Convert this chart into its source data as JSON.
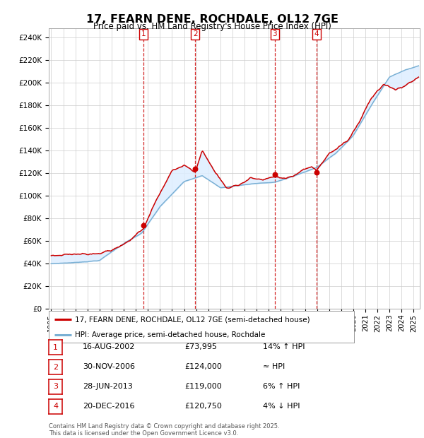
{
  "title": "17, FEARN DENE, ROCHDALE, OL12 7GE",
  "subtitle": "Price paid vs. HM Land Registry's House Price Index (HPI)",
  "ylabel_ticks": [
    0,
    20000,
    40000,
    60000,
    80000,
    100000,
    120000,
    140000,
    160000,
    180000,
    200000,
    220000,
    240000
  ],
  "ylabel_labels": [
    "£0",
    "£20K",
    "£40K",
    "£60K",
    "£80K",
    "£100K",
    "£120K",
    "£140K",
    "£160K",
    "£180K",
    "£200K",
    "£220K",
    "£240K"
  ],
  "xmin": 1994.8,
  "xmax": 2025.5,
  "ymin": 0,
  "ymax": 248000,
  "vlines": [
    2002.625,
    2006.917,
    2013.5,
    2016.972
  ],
  "vline_labels": [
    "1",
    "2",
    "3",
    "4"
  ],
  "sale_dates": [
    2002.625,
    2006.917,
    2013.5,
    2016.972
  ],
  "sale_prices": [
    73995,
    124000,
    119000,
    120750
  ],
  "red_color": "#cc0000",
  "blue_color": "#7ab0d4",
  "shade_color": "#ddeeff",
  "legend_line1": "17, FEARN DENE, ROCHDALE, OL12 7GE (semi-detached house)",
  "legend_line2": "HPI: Average price, semi-detached house, Rochdale",
  "table_data": [
    [
      "1",
      "16-AUG-2002",
      "£73,995",
      "14% ↑ HPI"
    ],
    [
      "2",
      "30-NOV-2006",
      "£124,000",
      "≈ HPI"
    ],
    [
      "3",
      "28-JUN-2013",
      "£119,000",
      "6% ↑ HPI"
    ],
    [
      "4",
      "20-DEC-2016",
      "£120,750",
      "4% ↓ HPI"
    ]
  ],
  "footnote": "Contains HM Land Registry data © Crown copyright and database right 2025.\nThis data is licensed under the Open Government Licence v3.0.",
  "background_color": "#ffffff",
  "grid_color": "#cccccc"
}
